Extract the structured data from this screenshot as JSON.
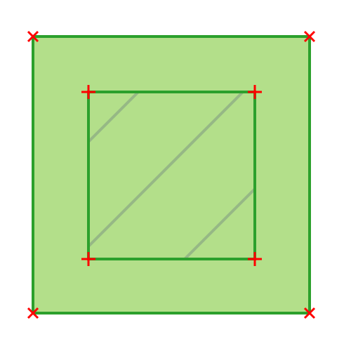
{
  "figure": {
    "kind": "square-with-inner-hatched-square",
    "colors": {
      "fill": "#b3df8a",
      "stroke": "#2ca02c",
      "hatch": "#96b885",
      "vertex_marker": "#ff0000",
      "background": "#ffffff"
    },
    "outer_vertex_marker": "x-mark",
    "inner_vertex_marker": "plus-mark",
    "inner_region_pattern": "diagonal-hatch"
  }
}
